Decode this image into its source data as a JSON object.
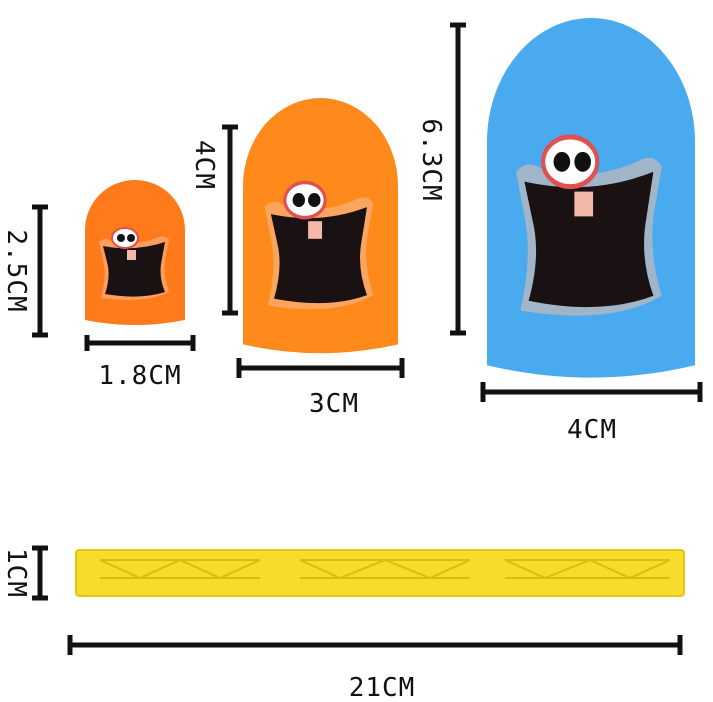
{
  "colors": {
    "small_cup": "#ff7a1a",
    "medium_cup": "#ff8a1c",
    "large_cup": "#4aaaf0",
    "base_bar": "#f7dc2a",
    "mouth": "#1a1212"
  },
  "dimensions": {
    "small_height": "2.5CM",
    "small_width": "1.8CM",
    "medium_height": "4CM",
    "medium_width": "3CM",
    "large_height": "6.3CM",
    "large_width": "4CM",
    "bar_height": "1CM",
    "bar_length": "21CM"
  }
}
